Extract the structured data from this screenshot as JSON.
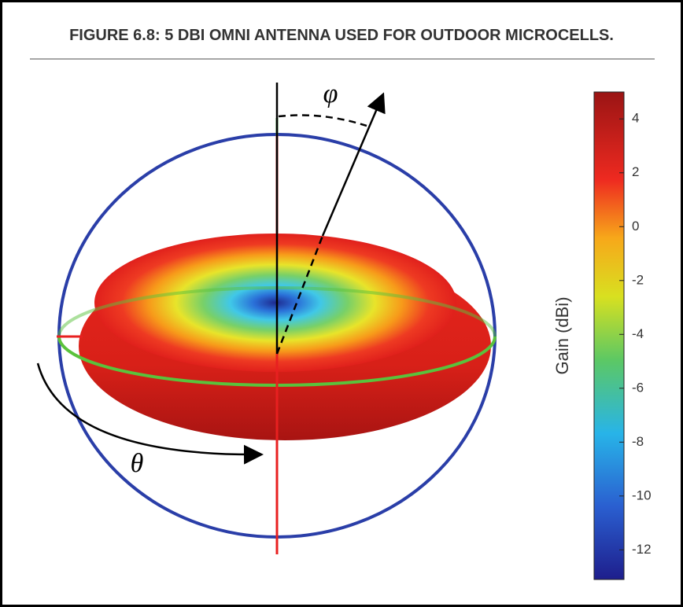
{
  "figure": {
    "title": "FIGURE 6.8: 5 DBI OMNI ANTENNA USED FOR OUTDOOR MICROCELLS.",
    "phi_label": "φ",
    "theta_label": "θ",
    "colorbar": {
      "label": "Gain (dBi)",
      "range": [
        -13.1,
        5
      ],
      "ticks": [
        4,
        2,
        0,
        -2,
        -4,
        -6,
        -8,
        -10,
        -12
      ]
    }
  }
}
